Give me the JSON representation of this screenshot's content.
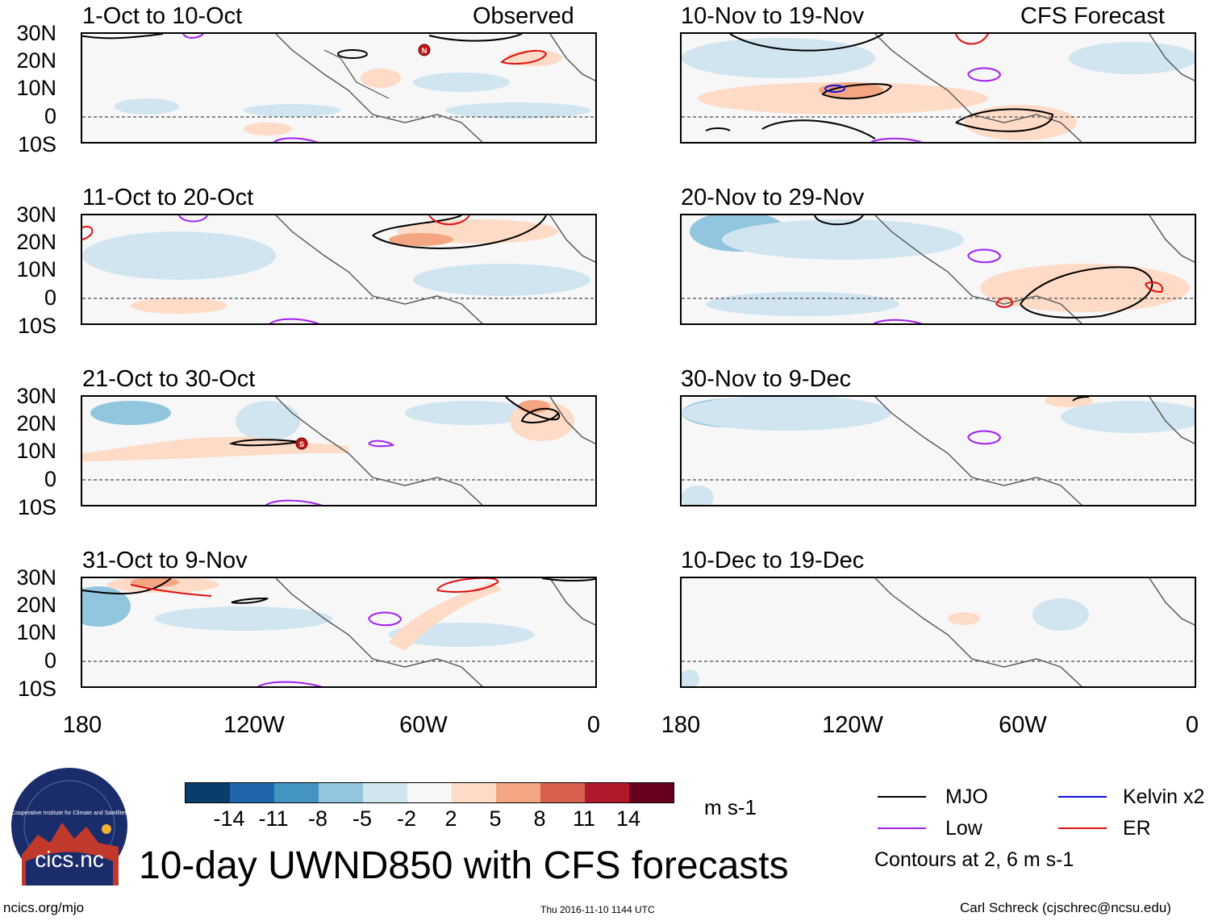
{
  "headings": {
    "left": "Observed",
    "right": "CFS Forecast"
  },
  "panels_left": [
    "1-Oct to 10-Oct",
    "11-Oct to 20-Oct",
    "21-Oct to 30-Oct",
    "31-Oct to 9-Nov"
  ],
  "panels_right": [
    "10-Nov to 19-Nov",
    "20-Nov to 29-Nov",
    "30-Nov to 9-Dec",
    "10-Dec to 19-Dec"
  ],
  "lat_labels": [
    "30N",
    "20N",
    "10N",
    "0",
    "10S"
  ],
  "lon_labels": [
    "180",
    "120W",
    "60W",
    "0"
  ],
  "storm_markers": {
    "panel1": "N",
    "panel3": "S"
  },
  "colorbar": {
    "labels": [
      "-14",
      "-11",
      "-8",
      "-5",
      "-2",
      "2",
      "5",
      "8",
      "11",
      "14"
    ],
    "colors": [
      "#0a3d6b",
      "#2166ac",
      "#4393c3",
      "#92c5de",
      "#d1e5f0",
      "#f7f7f7",
      "#fddbc7",
      "#f4a582",
      "#d6604d",
      "#b2182b",
      "#67001f"
    ],
    "units": "m s-1"
  },
  "legend": {
    "items": [
      {
        "label": "MJO",
        "color": "#000000"
      },
      {
        "label": "Kelvin x2",
        "color": "#1010e0"
      },
      {
        "label": "Low",
        "color": "#a020f0"
      },
      {
        "label": "ER",
        "color": "#e01010"
      }
    ],
    "note": "Contours at 2, 6 m s-1"
  },
  "logo_text": "cics.nc",
  "logo_ring_text": "Cooperative Institute for Climate and Satellites",
  "title": "10-day UWND850 with CFS forecasts",
  "footer": {
    "left": "ncics.org/mjo",
    "center": "Thu 2016-11-10 1144 UTC",
    "right": "Carl Schreck (cjschrec@ncsu.edu)"
  }
}
